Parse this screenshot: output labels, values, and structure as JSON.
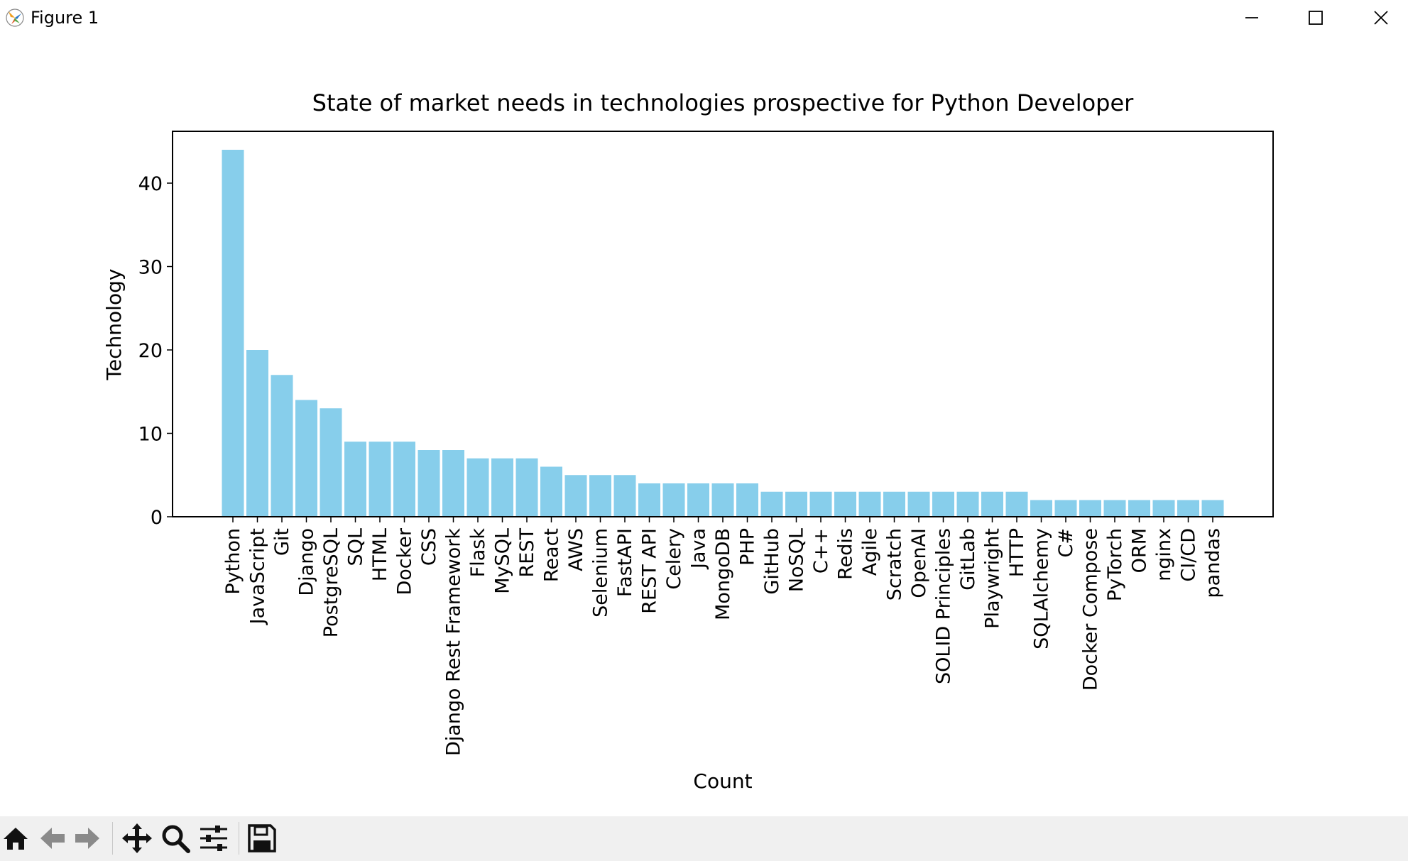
{
  "window": {
    "title": "Figure 1",
    "icons": {
      "app": "matplotlib-logo-icon",
      "minimize": "minimize-icon",
      "maximize": "maximize-icon",
      "close": "close-icon"
    }
  },
  "toolbar": {
    "buttons": [
      "home-icon",
      "back-arrow-icon",
      "forward-arrow-icon",
      "pan-icon",
      "zoom-icon",
      "configure-subplots-icon",
      "save-icon"
    ]
  },
  "chart_data": {
    "type": "bar",
    "title": "State of market needs in technologies prospective for Python Developer",
    "xlabel": "Count",
    "ylabel": "Technology",
    "categories": [
      "Python",
      "JavaScript",
      "Git",
      "Django",
      "PostgreSQL",
      "SQL",
      "HTML",
      "Docker",
      "CSS",
      "Django Rest Framework",
      "Flask",
      "MySQL",
      "REST",
      "React",
      "AWS",
      "Selenium",
      "FastAPI",
      "REST API",
      "Celery",
      "Java",
      "MongoDB",
      "PHP",
      "GitHub",
      "NoSQL",
      "C++",
      "Redis",
      "Agile",
      "Scratch",
      "OpenAI",
      "SOLID Principles",
      "GitLab",
      "Playwright",
      "HTTP",
      "SQLAlchemy",
      "C#",
      "Docker Compose",
      "PyTorch",
      "ORM",
      "nginx",
      "CI/CD",
      "pandas"
    ],
    "values": [
      44,
      20,
      17,
      14,
      13,
      9,
      9,
      9,
      8,
      8,
      7,
      7,
      7,
      6,
      5,
      5,
      5,
      4,
      4,
      4,
      4,
      4,
      3,
      3,
      3,
      3,
      3,
      3,
      3,
      3,
      3,
      3,
      3,
      2,
      2,
      2,
      2,
      2,
      2,
      2,
      2
    ],
    "yticks": [
      0,
      10,
      20,
      30,
      40
    ],
    "ylim": [
      0,
      46.2
    ],
    "bar_color": "#87ceeb",
    "grid": false,
    "legend": false
  }
}
